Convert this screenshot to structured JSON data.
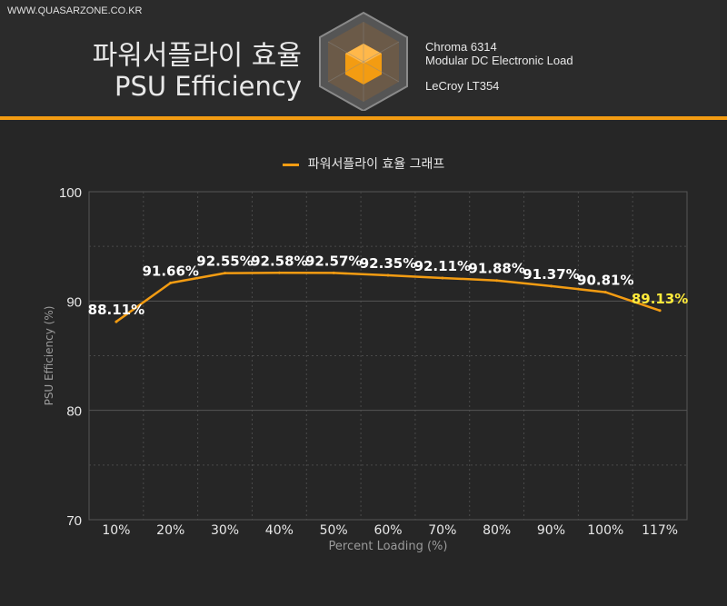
{
  "header": {
    "site_url": "WWW.QUASARZONE.CO.KR",
    "title_ko": "파워서플라이 효율",
    "title_en": "PSU Efficiency",
    "equipment": [
      "Chroma 6314",
      "Modular DC Electronic Load",
      "LeCroy LT354"
    ],
    "logo_icon": "hexagon-cube-icon"
  },
  "colors": {
    "accent": "#f39c12",
    "last_label": "#ffeb3b",
    "background": "#262626"
  },
  "legend": {
    "label": "파워서플라이 효율 그래프"
  },
  "chart_data": {
    "type": "line",
    "title": "파워서플라이 효율 그래프",
    "xlabel": "Percent Loading (%)",
    "ylabel": "PSU Efficiency (%)",
    "ylim": [
      70,
      100
    ],
    "yticks": [
      70,
      80,
      90,
      100
    ],
    "grid": true,
    "legend_position": "top-center",
    "categories": [
      "10%",
      "20%",
      "30%",
      "40%",
      "50%",
      "60%",
      "70%",
      "80%",
      "90%",
      "100%",
      "117%"
    ],
    "series": [
      {
        "name": "파워서플라이 효율 그래프",
        "values": [
          88.11,
          91.66,
          92.55,
          92.58,
          92.57,
          92.35,
          92.11,
          91.88,
          91.37,
          90.81,
          89.13
        ],
        "labels": [
          "88.11%",
          "91.66%",
          "92.55%",
          "92.58%",
          "92.57%",
          "92.35%",
          "92.11%",
          "91.88%",
          "91.37%",
          "90.81%",
          "89.13%"
        ]
      }
    ]
  }
}
